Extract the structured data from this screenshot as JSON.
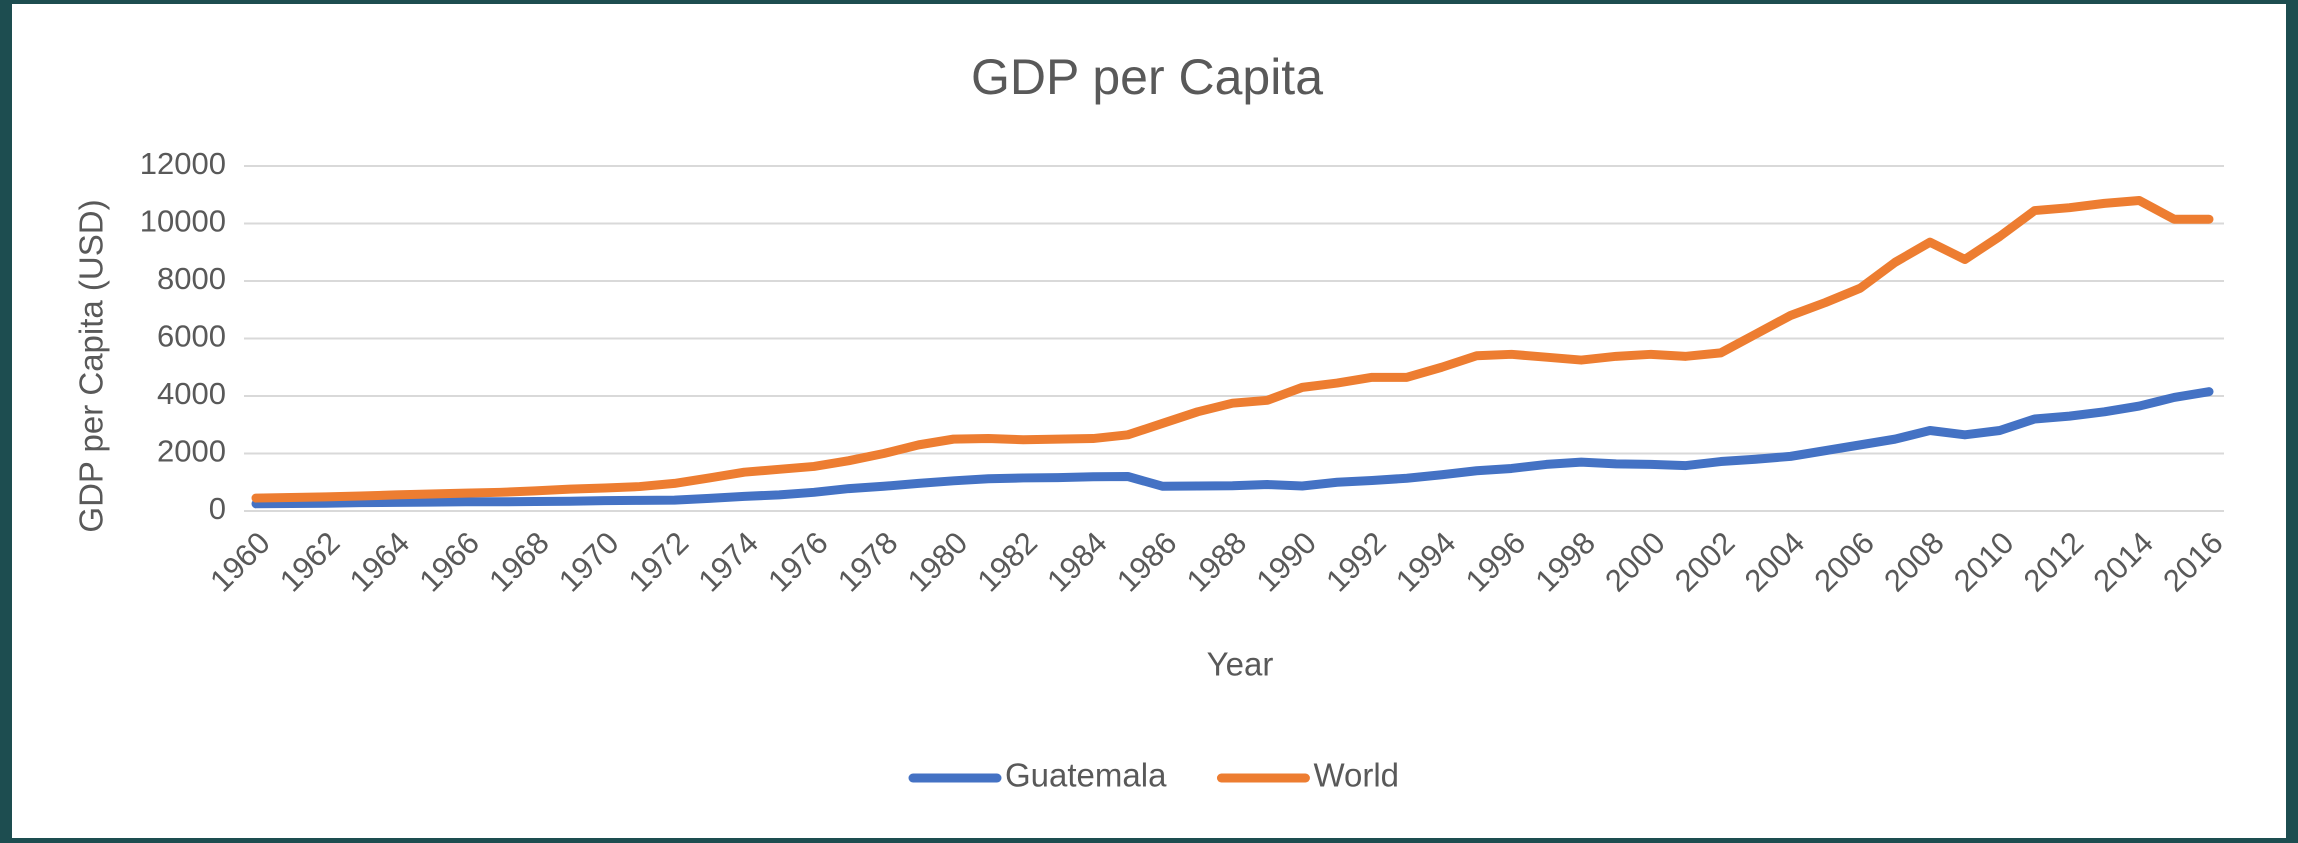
{
  "chart_data": {
    "type": "line",
    "title": "GDP per Capita",
    "x_label": "Year",
    "y_label": "GDP per Capita (USD)",
    "x": [
      1960,
      1961,
      1962,
      1963,
      1964,
      1965,
      1966,
      1967,
      1968,
      1969,
      1970,
      1971,
      1972,
      1973,
      1974,
      1975,
      1976,
      1977,
      1978,
      1979,
      1980,
      1981,
      1982,
      1983,
      1984,
      1985,
      1986,
      1987,
      1988,
      1989,
      1990,
      1991,
      1992,
      1993,
      1994,
      1995,
      1996,
      1997,
      1998,
      1999,
      2000,
      2001,
      2002,
      2003,
      2004,
      2005,
      2006,
      2007,
      2008,
      2009,
      2010,
      2011,
      2012,
      2013,
      2014,
      2015,
      2016
    ],
    "series": [
      {
        "name": "Guatemala",
        "color": "#4472c4",
        "values": [
          250,
          260,
          270,
          290,
          300,
          310,
          320,
          320,
          330,
          340,
          360,
          370,
          380,
          440,
          510,
          560,
          650,
          780,
          860,
          960,
          1050,
          1120,
          1150,
          1160,
          1190,
          1200,
          860,
          870,
          880,
          920,
          870,
          1000,
          1060,
          1140,
          1260,
          1400,
          1480,
          1620,
          1700,
          1640,
          1620,
          1580,
          1720,
          1800,
          1900,
          2100,
          2300,
          2500,
          2800,
          2650,
          2800,
          3200,
          3300,
          3450,
          3650,
          3950,
          4150
        ]
      },
      {
        "name": "World",
        "color": "#ed7d31",
        "values": [
          450,
          470,
          490,
          520,
          560,
          590,
          620,
          650,
          700,
          760,
          800,
          850,
          960,
          1150,
          1350,
          1450,
          1550,
          1750,
          2000,
          2300,
          2500,
          2520,
          2480,
          2500,
          2520,
          2650,
          3050,
          3450,
          3750,
          3850,
          4300,
          4450,
          4650,
          4650,
          5000,
          5400,
          5450,
          5350,
          5250,
          5380,
          5450,
          5380,
          5500,
          6150,
          6800,
          7250,
          7750,
          8650,
          9350,
          8750,
          9550,
          10450,
          10550,
          10700,
          10800,
          10150,
          10150
        ]
      }
    ],
    "xlim": [
      1960,
      2016
    ],
    "xticks": [
      1960,
      1962,
      1964,
      1966,
      1968,
      1970,
      1972,
      1974,
      1976,
      1978,
      1980,
      1982,
      1984,
      1986,
      1988,
      1990,
      1992,
      1994,
      1996,
      1998,
      2000,
      2002,
      2004,
      2006,
      2008,
      2010,
      2012,
      2014,
      2016
    ],
    "ylim": [
      0,
      12000
    ],
    "yticks": [
      0,
      2000,
      4000,
      6000,
      8000,
      10000,
      12000
    ],
    "grid": true,
    "legend": "bottom"
  }
}
